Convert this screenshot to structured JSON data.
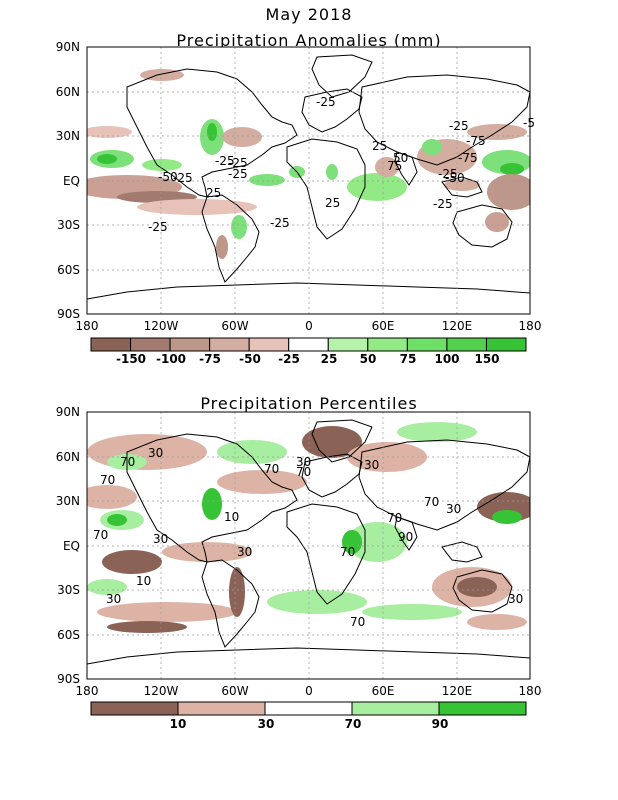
{
  "header": {
    "title": "May 2018"
  },
  "panel_top": {
    "subtitle": "Precipitation Anomalies (mm)",
    "lat_labels": [
      "90N",
      "60N",
      "30N",
      "EQ",
      "30S",
      "60S",
      "90S"
    ],
    "lon_labels": [
      "180",
      "120W",
      "60W",
      "0",
      "60E",
      "120E",
      "180"
    ],
    "colorbar": {
      "colors": [
        "#8b6256",
        "#a27a6f",
        "#bd9789",
        "#d4ada1",
        "#e6c2b8",
        "#ffffff",
        "#b6f2aa",
        "#92ea84",
        "#6fe067",
        "#52d04e",
        "#36c436"
      ],
      "labels": [
        "-150",
        "-100",
        "-75",
        "-50",
        "-25",
        "25",
        "50",
        "75",
        "100",
        "150"
      ]
    },
    "contour_labels": [
      "-25",
      "-25",
      "-25",
      "-25",
      "-50",
      "-75",
      "-25",
      "-25",
      "25",
      "25",
      "25",
      "-50",
      "-25",
      "-25",
      "50",
      "75",
      "-25",
      "-75",
      "-25",
      "-5"
    ]
  },
  "panel_bottom": {
    "subtitle": "Precipitation Percentiles",
    "lat_labels": [
      "90N",
      "60N",
      "30N",
      "EQ",
      "30S",
      "60S",
      "90S"
    ],
    "lon_labels": [
      "180",
      "120W",
      "60W",
      "0",
      "60E",
      "120E",
      "180"
    ],
    "colorbar": {
      "colors": [
        "#8b6256",
        "#ddb3a6",
        "#ffffff",
        "#a8eea0",
        "#36c436"
      ],
      "labels": [
        "10",
        "30",
        "70",
        "90"
      ]
    },
    "contour_labels": [
      "30",
      "70",
      "70",
      "30",
      "70",
      "70",
      "30",
      "10",
      "70",
      "30",
      "30",
      "70",
      "90",
      "70",
      "10",
      "30",
      "30",
      "70",
      "30",
      "70"
    ]
  },
  "colors": {
    "dry": "#c9a093",
    "dry_dark": "#8b6256",
    "wet": "#7de07a",
    "wet_dark": "#36c436",
    "grid": "#9a9a9a"
  }
}
